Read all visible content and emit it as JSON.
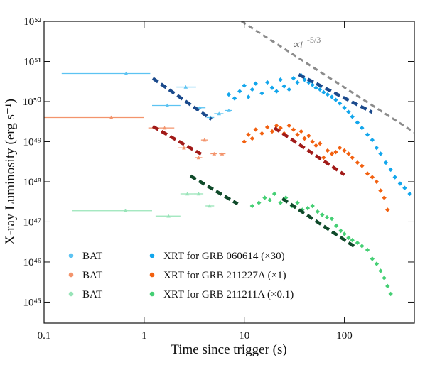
{
  "chart_data": {
    "type": "scatter",
    "x_label": "Time since trigger (s)",
    "y_label": "X-ray Luminosity (erg s⁻¹)",
    "log_x": true,
    "log_y": true,
    "xlim": [
      0.1,
      500
    ],
    "ylim": [
      3e+44,
      1e+52
    ],
    "xticks": [
      0.1,
      1,
      10,
      100
    ],
    "yticks": [
      {
        "value": 1e+45,
        "label": "10⁴⁵"
      },
      {
        "value": 1e+46,
        "label": "10⁴⁶"
      },
      {
        "value": 1e+47,
        "label": "10⁴⁷"
      },
      {
        "value": 1e+48,
        "label": "10⁴⁸"
      },
      {
        "value": 1e+49,
        "label": "10⁴⁹"
      },
      {
        "value": 1e+50,
        "label": "10⁵⁰"
      },
      {
        "value": 1e+51,
        "label": "10⁵¹"
      },
      {
        "value": 1e+52,
        "label": "10⁵²"
      }
    ],
    "legend": "lower left",
    "series": [
      {
        "name": "BAT",
        "color": "#5cc3f2",
        "marker": "triangle",
        "x": [
          0.66,
          1.7,
          2.6,
          3.6,
          4.6,
          5.6,
          7.0
        ],
        "values": [
          5e+50,
          8e+49,
          2.3e+50,
          7e+49,
          4e+49,
          5e+49,
          6e+49
        ],
        "xerr": [
          [
            0.15,
            1.15
          ],
          [
            1.2,
            2.3
          ],
          [
            2.1,
            3.3
          ],
          [
            3.2,
            4.1
          ],
          [
            4.2,
            5.0
          ],
          [
            5.0,
            6.2
          ],
          [
            6.4,
            7.6
          ]
        ]
      },
      {
        "name": "XRT for GRB 060614 (×30)",
        "color": "#12a6ec",
        "marker": "diamond",
        "x": [
          7,
          8,
          9,
          10,
          11,
          12,
          13,
          15,
          17,
          19,
          21,
          23,
          25,
          28,
          31,
          34,
          37,
          40,
          44,
          48,
          52,
          57,
          62,
          68,
          75,
          82,
          90,
          100,
          110,
          120,
          135,
          150,
          170,
          190,
          210,
          230,
          260,
          290,
          320,
          360,
          400,
          450
        ],
        "values": [
          1.5e+50,
          1.2e+50,
          1.8e+50,
          2.5e+50,
          1.3e+50,
          2e+50,
          2.8e+50,
          1.6e+50,
          3e+50,
          2.2e+50,
          1.8e+50,
          3.5e+50,
          2.4e+50,
          2e+50,
          3.8e+50,
          3e+50,
          4.5e+50,
          3.5e+50,
          3e+50,
          2.6e+50,
          2.2e+50,
          2e+50,
          1.7e+50,
          1.5e+50,
          1.3e+50,
          1.1e+50,
          9e+49,
          7e+49,
          5.5e+49,
          4.2e+49,
          3e+49,
          2.2e+49,
          1.5e+49,
          1.1e+49,
          7e+48,
          5e+48,
          3e+48,
          2e+48,
          1.3e+48,
          9e+47,
          7e+47,
          5e+47
        ]
      },
      {
        "name": "BAT",
        "color": "#f3946c",
        "marker": "triangle",
        "x": [
          0.47,
          1.6,
          2.5,
          3.5,
          4.0,
          5.0,
          6.0
        ],
        "values": [
          4e+49,
          2.2e+49,
          7e+48,
          4e+48,
          1.1e+49,
          5e+48,
          5e+48
        ],
        "xerr": [
          [
            0.1,
            1.0
          ],
          [
            1.1,
            2.0
          ],
          [
            2.2,
            2.8
          ],
          [
            3.2,
            3.8
          ],
          [
            3.7,
            4.3
          ],
          [
            4.6,
            5.4
          ],
          [
            5.6,
            6.5
          ]
        ]
      },
      {
        "name": "XRT for GRB 211227A (×1)",
        "color": "#f2600f",
        "marker": "diamond",
        "x": [
          10,
          11,
          12,
          13,
          15,
          17,
          19,
          21,
          23,
          25,
          28,
          31,
          34,
          37,
          40,
          44,
          48,
          52,
          57,
          62,
          68,
          75,
          82,
          90,
          100,
          110,
          120,
          135,
          150,
          170,
          190,
          210,
          230,
          250,
          270
        ],
        "values": [
          1e+49,
          1.5e+49,
          1.2e+49,
          2e+49,
          1.6e+49,
          2.3e+49,
          1.8e+49,
          2.5e+49,
          2.2e+49,
          1.6e+49,
          2.5e+49,
          2e+49,
          1.5e+49,
          1.8e+49,
          1.2e+49,
          1.4e+49,
          1e+49,
          8e+48,
          9e+48,
          4e+48,
          6e+48,
          5e+48,
          5.5e+48,
          7e+48,
          6e+48,
          5e+48,
          4e+48,
          3e+48,
          2.5e+48,
          1.6e+48,
          1.3e+48,
          1e+48,
          6e+47,
          4e+47,
          2e+47
        ]
      },
      {
        "name": "BAT",
        "color": "#98e4b8",
        "marker": "triangle",
        "x": [
          0.65,
          1.75,
          2.7,
          3.5,
          4.5
        ],
        "values": [
          1.9e+47,
          1.4e+47,
          5e+47,
          5e+47,
          2.5e+47
        ],
        "xerr": [
          [
            0.19,
            1.2
          ],
          [
            1.3,
            2.3
          ],
          [
            2.3,
            3.1
          ],
          [
            3.1,
            3.9
          ],
          [
            4.1,
            5.0
          ]
        ]
      },
      {
        "name": "XRT for GRB 211211A (×0.1)",
        "color": "#45cf74",
        "marker": "diamond",
        "x": [
          12,
          14,
          16,
          18,
          20,
          23,
          26,
          30,
          34,
          38,
          43,
          48,
          54,
          60,
          67,
          75,
          83,
          92,
          100,
          110,
          120,
          135,
          150,
          170,
          190,
          210,
          230,
          250,
          270,
          290
        ],
        "values": [
          2.5e+47,
          3e+47,
          4e+47,
          3.5e+47,
          5e+47,
          3e+47,
          4e+47,
          2.5e+47,
          3e+47,
          2e+47,
          2.2e+47,
          2.5e+47,
          1.8e+47,
          1.5e+47,
          1.3e+47,
          1.2e+47,
          8e+46,
          6e+46,
          5e+46,
          4e+46,
          3.5e+46,
          3e+46,
          2.5e+46,
          2e+46,
          1.2e+46,
          9e+45,
          6e+45,
          4e+45,
          2.5e+45,
          1.6e+45
        ]
      }
    ],
    "fits": [
      {
        "color": "#1b4a8c",
        "x": [
          1.22,
          4.7
        ],
        "values": [
          3.8e+50,
          3.6e+49
        ]
      },
      {
        "color": "#1b4a8c",
        "x": [
          35,
          190
        ],
        "values": [
          4.7e+50,
          5.4e+49
        ]
      },
      {
        "color": "#a11a18",
        "x": [
          1.22,
          3.7
        ],
        "values": [
          2.4e+49,
          4.9e+48
        ]
      },
      {
        "color": "#a11a18",
        "x": [
          20,
          100
        ],
        "values": [
          2.2e+49,
          1.5e+48
        ]
      },
      {
        "color": "#0f4a2a",
        "x": [
          2.9,
          8.6
        ],
        "values": [
          1.4e+48,
          2.8e+47
        ]
      },
      {
        "color": "#0f4a2a",
        "x": [
          24,
          130
        ],
        "values": [
          3.8e+47,
          2.3e+46
        ]
      }
    ],
    "guide": {
      "color": "#8c8c8c",
      "x": [
        9.4,
        500
      ],
      "values": [
        1e+52,
        1.7e+49
      ],
      "text": "∝t",
      "superscript": "-5/3"
    }
  }
}
